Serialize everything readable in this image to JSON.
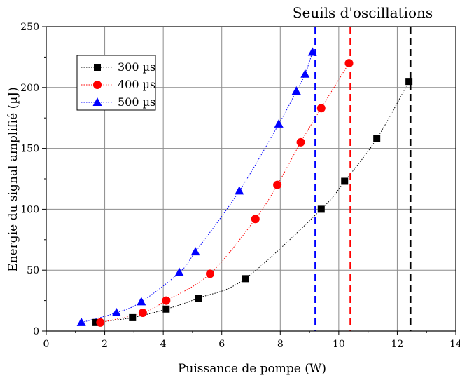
{
  "chart_data": {
    "type": "scatter",
    "xlabel": "Puissance de pompe (W)",
    "ylabel": "Energie du signal amplifié (µJ)",
    "xlim": [
      0,
      14
    ],
    "ylim": [
      0,
      250
    ],
    "xticks": [
      0,
      2,
      4,
      6,
      8,
      10,
      12,
      14
    ],
    "yticks": [
      0,
      50,
      100,
      150,
      200,
      250
    ],
    "grid": true,
    "legend_position": "top-left",
    "series": [
      {
        "name": "300 µs",
        "marker": "square",
        "color": "#000000",
        "line": "dotted",
        "x": [
          1.7,
          2.95,
          4.1,
          5.2,
          6.8,
          9.4,
          10.2,
          11.3,
          12.4
        ],
        "y": [
          7,
          11,
          18,
          27,
          43,
          100,
          123,
          158,
          205
        ]
      },
      {
        "name": "400 µs",
        "marker": "circle",
        "color": "#ff0000",
        "line": "dotted",
        "x": [
          1.85,
          3.3,
          4.1,
          5.6,
          7.15,
          7.9,
          8.7,
          9.4,
          10.35
        ],
        "y": [
          7,
          15,
          25,
          47,
          92,
          120,
          155,
          183,
          220
        ]
      },
      {
        "name": "500 µs",
        "marker": "triangle",
        "color": "#0000ff",
        "line": "dotted",
        "x": [
          1.2,
          2.4,
          3.25,
          4.55,
          5.1,
          6.6,
          7.95,
          8.55,
          8.85,
          9.1
        ],
        "y": [
          7,
          15,
          24,
          48,
          65,
          115,
          170,
          197,
          211,
          229
        ]
      }
    ],
    "threshold_lines": [
      {
        "x": 9.2,
        "color": "#0000ff"
      },
      {
        "x": 10.4,
        "color": "#ff0000"
      },
      {
        "x": 12.45,
        "color": "#000000"
      }
    ],
    "annotation": "Seuils d'oscillations"
  }
}
